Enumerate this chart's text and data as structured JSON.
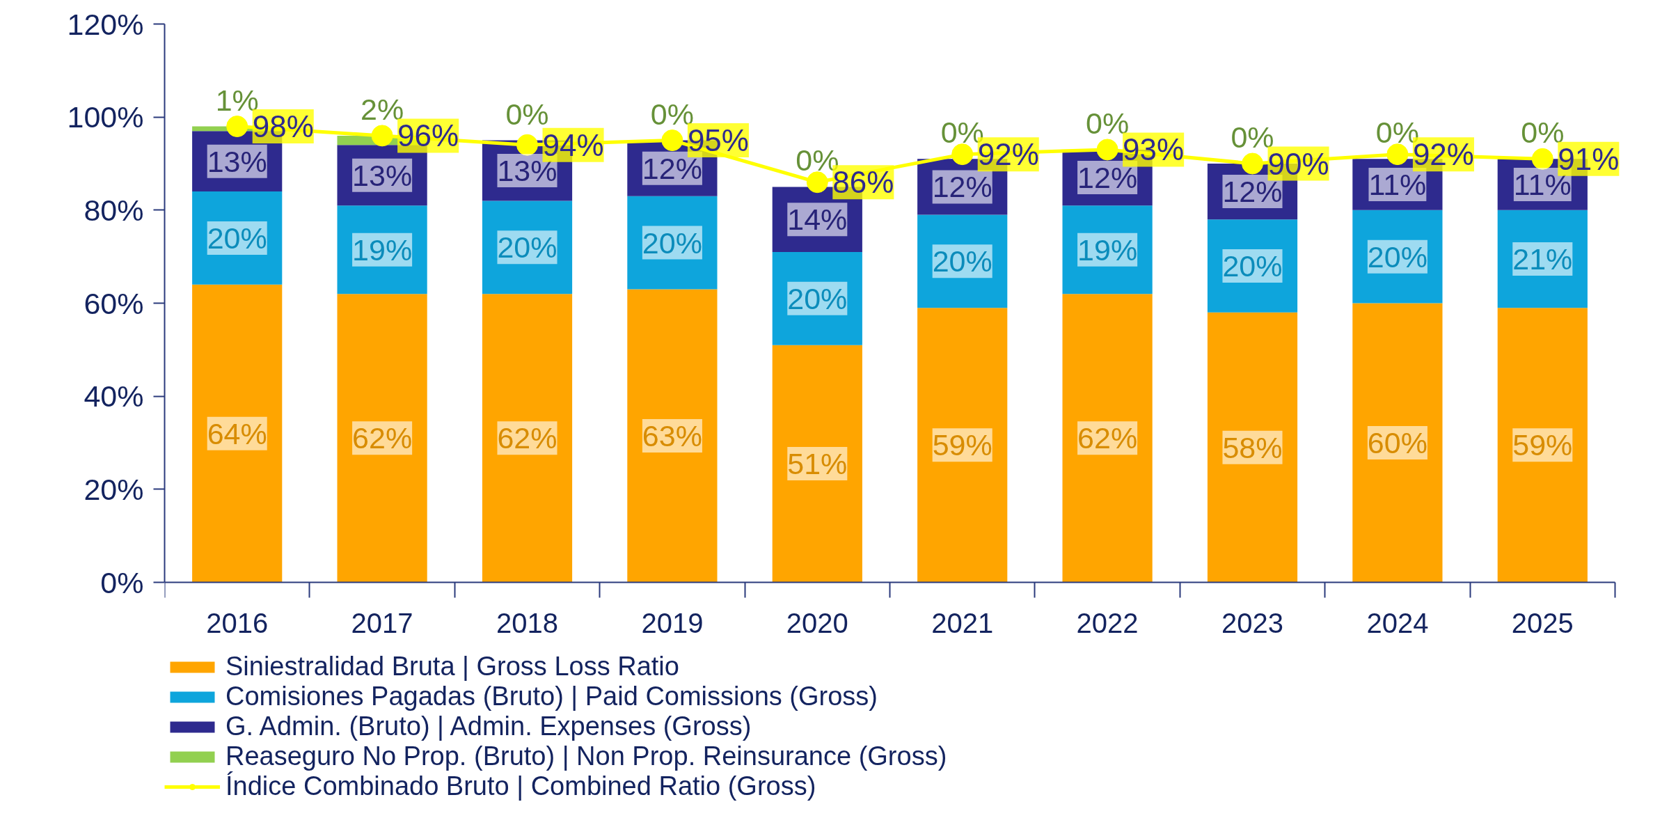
{
  "chart_data": {
    "type": "bar",
    "stacked": true,
    "legend": "bottom",
    "marker": "circle",
    "categories": [
      "2016",
      "2017",
      "2018",
      "2019",
      "2020",
      "2021",
      "2022",
      "2023",
      "2024",
      "2025"
    ],
    "ylim": [
      0,
      120
    ],
    "yticks": [
      {
        "value": 0,
        "label": "0%"
      },
      {
        "value": 20,
        "label": "20%"
      },
      {
        "value": 40,
        "label": "40%"
      },
      {
        "value": 60,
        "label": "60%"
      },
      {
        "value": 80,
        "label": "80%"
      },
      {
        "value": 100,
        "label": "100%"
      },
      {
        "value": 120,
        "label": "120%"
      }
    ],
    "series": [
      {
        "name": "Siniestralidad Bruta | Gross Loss Ratio",
        "color": "#ffa500",
        "values": [
          64,
          62,
          62,
          63,
          51,
          59,
          62,
          58,
          60,
          59
        ],
        "value_labels": [
          "64%",
          "62%",
          "62%",
          "63%",
          "51%",
          "59%",
          "62%",
          "58%",
          "60%",
          "59%"
        ]
      },
      {
        "name": "Comisiones Pagadas (Bruto) | Paid Comissions (Gross)",
        "color": "#0ea5dc",
        "values": [
          20,
          19,
          20,
          20,
          20,
          20,
          19,
          20,
          20,
          21
        ],
        "value_labels": [
          "20%",
          "19%",
          "20%",
          "20%",
          "20%",
          "20%",
          "19%",
          "20%",
          "20%",
          "21%"
        ]
      },
      {
        "name": "G. Admin. (Bruto) | Admin. Expenses (Gross)",
        "color": "#2e2a8e",
        "values": [
          13,
          13,
          13,
          12,
          14,
          12,
          12,
          12,
          11,
          11
        ],
        "value_labels": [
          "13%",
          "13%",
          "13%",
          "12%",
          "14%",
          "12%",
          "12%",
          "12%",
          "11%",
          "11%"
        ]
      },
      {
        "name": "Reaseguro No Prop. (Bruto) | Non Prop. Reinsurance (Gross)",
        "color": "#92d050",
        "values": [
          1,
          2,
          0,
          0,
          0,
          0,
          0,
          0,
          0,
          0
        ],
        "value_labels": [
          "1%",
          "2%",
          "0%",
          "0%",
          "0%",
          "0%",
          "0%",
          "0%",
          "0%",
          "0%"
        ]
      },
      {
        "name": "Índice Combinado Bruto | Combined Ratio (Gross)",
        "type": "line",
        "color": "#ffff00",
        "values": [
          98,
          96,
          94,
          95,
          86,
          92,
          93,
          90,
          92,
          91
        ],
        "value_labels": [
          "98%",
          "96%",
          "94%",
          "95%",
          "86%",
          "92%",
          "93%",
          "90%",
          "92%",
          "91%"
        ]
      }
    ]
  }
}
